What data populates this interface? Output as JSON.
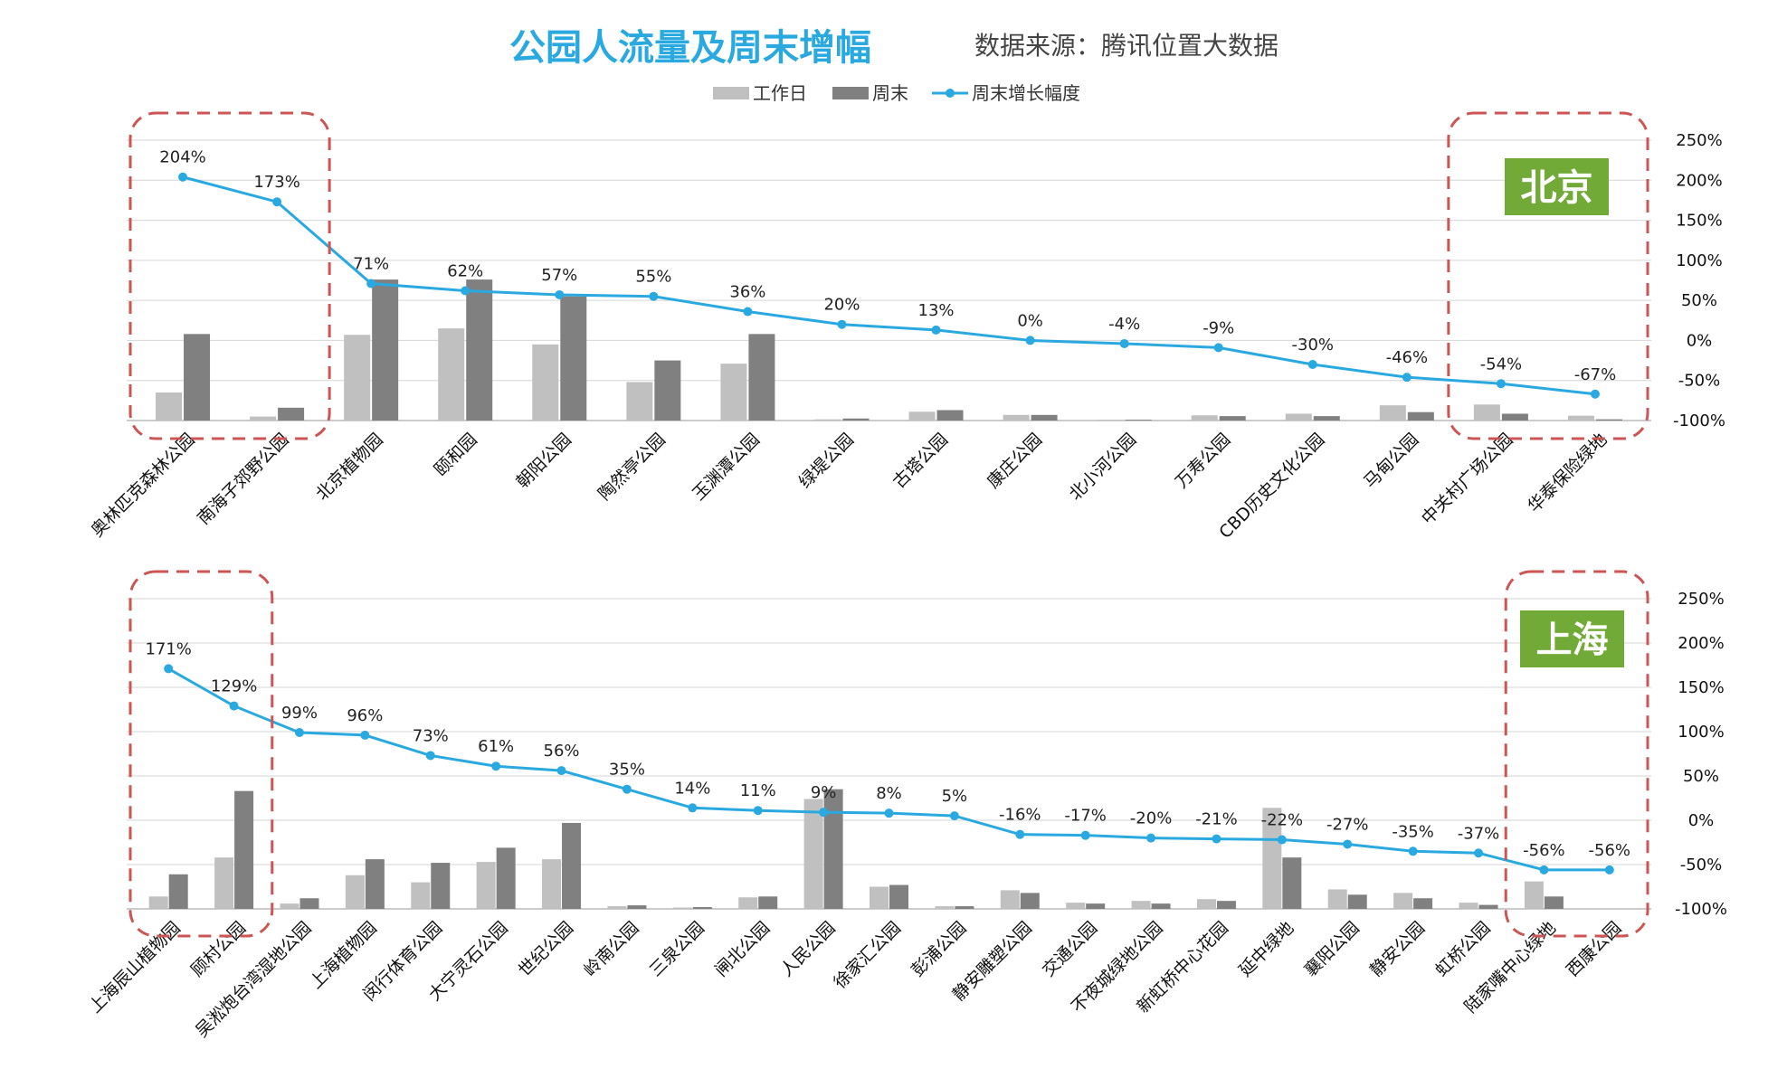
{
  "title": "公园人流量及周末增幅",
  "source": "数据来源：腾讯位置大数据",
  "legend": [
    {
      "label": "工作日",
      "kind": "bar",
      "color": "#c0c0c0"
    },
    {
      "label": "周末",
      "kind": "bar",
      "color": "#808080"
    },
    {
      "label": "周末增长幅度",
      "kind": "line",
      "color": "#2aa9e0"
    }
  ],
  "colors": {
    "weekday": "#c0c0c0",
    "weekend": "#808080",
    "line": "#2aa9e0",
    "tag": "#72aa38",
    "highlight": "#cc5555",
    "grid": "#d6d6d6"
  },
  "chart_data": [
    {
      "type": "bar",
      "tag": "北京",
      "y2_ticks": [
        "250%",
        "200%",
        "150%",
        "100%",
        "50%",
        "0%",
        "-50%",
        "-100%"
      ],
      "y2lim": [
        -100,
        250
      ],
      "categories": [
        "奥林匹克森林公园",
        "南海子郊野公园",
        "北京植物园",
        "颐和园",
        "朝阳公园",
        "陶然亭公园",
        "玉渊潭公园",
        "绿堤公园",
        "古塔公园",
        "康庄公园",
        "北小河公园",
        "万寿公园",
        "CBD历史文化公园",
        "马甸公园",
        "中关村广场公园",
        "华泰保险绿地"
      ],
      "series": [
        {
          "name": "工作日",
          "values": [
            35,
            5,
            107,
            115,
            95,
            48,
            71,
            1.5,
            11,
            7,
            1,
            6.5,
            8.5,
            19,
            20,
            6
          ]
        },
        {
          "name": "周末",
          "values": [
            108,
            16,
            176,
            176,
            155,
            75,
            108,
            2.5,
            13,
            7,
            1,
            5.5,
            5.5,
            10.5,
            8.5,
            1.5
          ]
        },
        {
          "name": "周末增长幅度",
          "values": [
            204,
            173,
            71,
            62,
            57,
            55,
            36,
            20,
            13,
            0,
            -4,
            -9,
            -30,
            -46,
            -54,
            -67
          ]
        }
      ],
      "growth_labels": [
        "204%",
        "173%",
        "71%",
        "62%",
        "57%",
        "55%",
        "36%",
        "20%",
        "13%",
        "0%",
        "-4%",
        "-9%",
        "-30%",
        "-46%",
        "-54%",
        "-67%"
      ],
      "highlight_groups": [
        [
          0,
          1
        ],
        [
          14,
          15
        ]
      ]
    },
    {
      "type": "bar",
      "tag": "上海",
      "y2_ticks": [
        "250%",
        "200%",
        "150%",
        "100%",
        "50%",
        "0%",
        "-50%",
        "-100%"
      ],
      "y2lim": [
        -100,
        250
      ],
      "categories": [
        "上海辰山植物园",
        "顾村公园",
        "吴淞炮台湾湿地公园",
        "上海植物园",
        "闵行体育公园",
        "大宁灵石公园",
        "世纪公园",
        "岭南公园",
        "三泉公园",
        "闸北公园",
        "人民公园",
        "徐家汇公园",
        "彭浦公园",
        "静安雕塑公园",
        "交通公园",
        "不夜城绿地公园",
        "新虹桥中心花园",
        "延中绿地",
        "襄阳公园",
        "静安公园",
        "虹桥公园",
        "陆家嘴中心绿地",
        "西康公园"
      ],
      "series": [
        {
          "name": "工作日",
          "values": [
            14,
            58,
            6,
            38,
            30,
            53,
            56,
            3,
            1.5,
            13,
            124,
            25,
            3,
            21,
            7,
            9,
            11,
            114,
            22,
            18,
            7,
            31,
            0
          ]
        },
        {
          "name": "周末",
          "values": [
            39,
            133,
            12,
            56,
            52,
            69,
            97,
            4,
            2,
            14,
            135,
            27,
            3,
            18,
            6,
            6,
            9,
            58,
            16,
            12,
            4.5,
            14,
            0
          ]
        },
        {
          "name": "周末增长幅度",
          "values": [
            171,
            129,
            99,
            96,
            73,
            61,
            56,
            35,
            14,
            11,
            9,
            8,
            5,
            -16,
            -17,
            -20,
            -21,
            -22,
            -27,
            -35,
            -37,
            -56,
            -56
          ]
        }
      ],
      "growth_labels": [
        "171%",
        "129%",
        "99%",
        "96%",
        "73%",
        "61%",
        "56%",
        "35%",
        "14%",
        "11%",
        "9%",
        "8%",
        "5%",
        "-16%",
        "-17%",
        "-20%",
        "-21%",
        "-22%",
        "-27%",
        "-35%",
        "-37%",
        "-56%",
        "-56%"
      ],
      "highlight_groups": [
        [
          0,
          1
        ],
        [
          21,
          22
        ]
      ]
    }
  ]
}
